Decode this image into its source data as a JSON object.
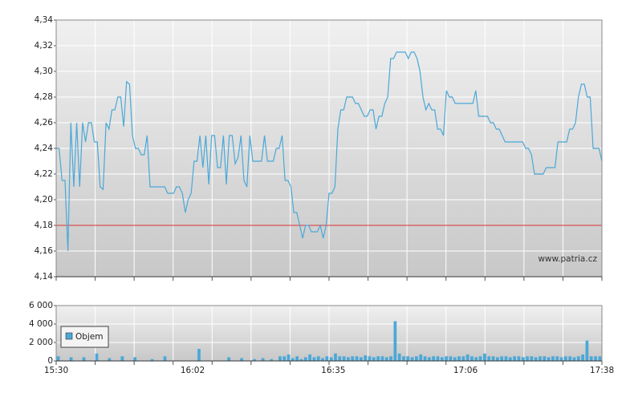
{
  "chart_data": [
    {
      "type": "line",
      "color": "#4aa8d8",
      "ylim": [
        4.14,
        4.34
      ],
      "yticks": [
        {
          "value": 4.14,
          "label": "4,14"
        },
        {
          "value": 4.16,
          "label": "4,16"
        },
        {
          "value": 4.18,
          "label": "4,18"
        },
        {
          "value": 4.2,
          "label": "4,20"
        },
        {
          "value": 4.22,
          "label": "4,22"
        },
        {
          "value": 4.24,
          "label": "4,24"
        },
        {
          "value": 4.26,
          "label": "4,26"
        },
        {
          "value": 4.28,
          "label": "4,28"
        },
        {
          "value": 4.3,
          "label": "4,30"
        },
        {
          "value": 4.32,
          "label": "4,32"
        },
        {
          "value": 4.34,
          "label": "4,34"
        }
      ],
      "grid": true,
      "reference_line": {
        "value": 4.18,
        "color": "#e03030"
      },
      "watermark": "www.patria.cz",
      "values": [
        4.24,
        4.24,
        4.215,
        4.215,
        4.16,
        4.26,
        4.21,
        4.26,
        4.21,
        4.26,
        4.245,
        4.26,
        4.26,
        4.245,
        4.245,
        4.21,
        4.208,
        4.26,
        4.255,
        4.27,
        4.27,
        4.28,
        4.28,
        4.257,
        4.292,
        4.29,
        4.25,
        4.24,
        4.24,
        4.235,
        4.235,
        4.25,
        4.21,
        4.21,
        4.21,
        4.21,
        4.21,
        4.21,
        4.205,
        4.205,
        4.205,
        4.21,
        4.21,
        4.205,
        4.19,
        4.2,
        4.205,
        4.23,
        4.23,
        4.25,
        4.225,
        4.25,
        4.212,
        4.25,
        4.25,
        4.225,
        4.225,
        4.25,
        4.212,
        4.25,
        4.25,
        4.228,
        4.233,
        4.25,
        4.215,
        4.21,
        4.25,
        4.23,
        4.23,
        4.23,
        4.23,
        4.25,
        4.23,
        4.23,
        4.23,
        4.24,
        4.24,
        4.25,
        4.215,
        4.215,
        4.21,
        4.19,
        4.19,
        4.18,
        4.17,
        4.18,
        4.18,
        4.175,
        4.175,
        4.175,
        4.18,
        4.17,
        4.18,
        4.205,
        4.205,
        4.21,
        4.255,
        4.27,
        4.27,
        4.28,
        4.28,
        4.28,
        4.275,
        4.275,
        4.27,
        4.265,
        4.265,
        4.27,
        4.27,
        4.255,
        4.265,
        4.265,
        4.275,
        4.28,
        4.31,
        4.31,
        4.315,
        4.315,
        4.315,
        4.315,
        4.31,
        4.315,
        4.315,
        4.31,
        4.3,
        4.28,
        4.27,
        4.275,
        4.27,
        4.27,
        4.255,
        4.255,
        4.25,
        4.285,
        4.28,
        4.28,
        4.275,
        4.275,
        4.275,
        4.275,
        4.275,
        4.275,
        4.275,
        4.285,
        4.265,
        4.265,
        4.265,
        4.265,
        4.26,
        4.26,
        4.255,
        4.255,
        4.25,
        4.245,
        4.245,
        4.245,
        4.245,
        4.245,
        4.245,
        4.245,
        4.24,
        4.24,
        4.235,
        4.22,
        4.22,
        4.22,
        4.22,
        4.225,
        4.225,
        4.225,
        4.225,
        4.245,
        4.245,
        4.245,
        4.245,
        4.255,
        4.255,
        4.26,
        4.28,
        4.29,
        4.29,
        4.28,
        4.28,
        4.24,
        4.24,
        4.24,
        4.23
      ]
    },
    {
      "type": "bar",
      "series": [
        {
          "name": "Objem",
          "color": "#4aa8d8",
          "values": [
            500,
            0,
            0,
            400,
            0,
            0,
            400,
            0,
            0,
            800,
            0,
            0,
            300,
            0,
            0,
            500,
            0,
            0,
            400,
            0,
            0,
            0,
            200,
            0,
            0,
            500,
            0,
            0,
            0,
            0,
            0,
            0,
            0,
            1300,
            0,
            0,
            0,
            0,
            0,
            0,
            400,
            0,
            0,
            300,
            0,
            0,
            200,
            0,
            300,
            0,
            200,
            0,
            500,
            500,
            700,
            300,
            500,
            200,
            400,
            700,
            400,
            500,
            300,
            500,
            400,
            800,
            500,
            500,
            400,
            500,
            500,
            400,
            600,
            500,
            400,
            500,
            500,
            400,
            500,
            4300,
            800,
            500,
            500,
            400,
            500,
            700,
            500,
            400,
            500,
            500,
            400,
            500,
            500,
            400,
            500,
            500,
            700,
            500,
            400,
            500,
            800,
            500,
            500,
            400,
            500,
            500,
            400,
            500,
            500,
            400,
            500,
            500,
            400,
            500,
            500,
            400,
            500,
            500,
            400,
            500,
            500,
            400,
            500,
            700,
            2200,
            500,
            500,
            500
          ]
        }
      ],
      "ylim": [
        0,
        6000
      ],
      "yticks": [
        0,
        {
          "value": 2000,
          "label": "2 000"
        },
        {
          "value": 4000,
          "label": "4 000"
        },
        {
          "value": 6000,
          "label": "6 000"
        }
      ],
      "grid": true,
      "xticks": [
        "15:30",
        "16:02",
        "16:35",
        "17:06",
        "17:38"
      ]
    }
  ]
}
